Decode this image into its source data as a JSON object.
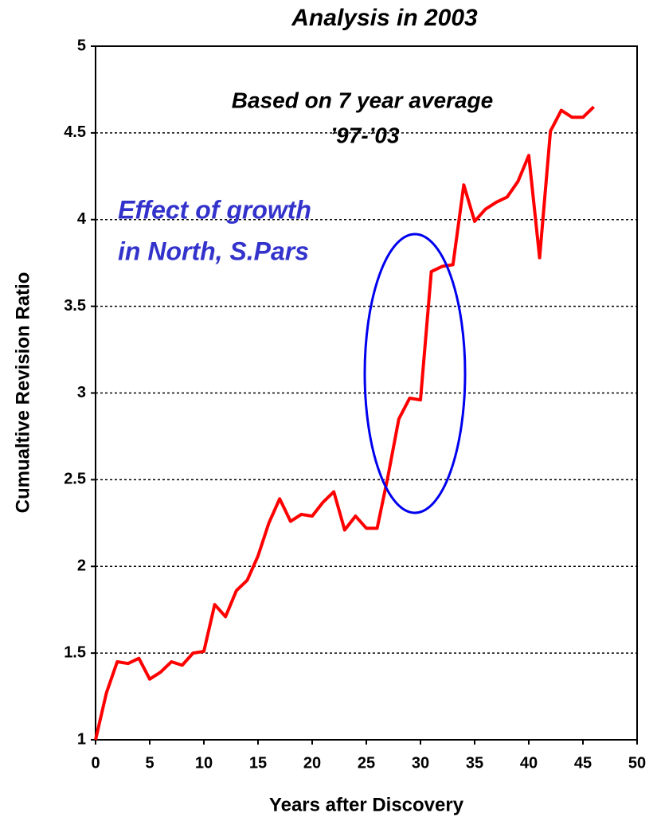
{
  "chart_data": {
    "type": "line",
    "title": "Analysis in 2003",
    "annotations": [
      "Based on 7 year average",
      "’97-’03",
      "Effect of growth",
      "in North, S.Pars"
    ],
    "xlabel": "Years after Discovery",
    "ylabel": "Cumualtive Revision Ratio",
    "x": [
      0,
      1,
      2,
      3,
      4,
      5,
      6,
      7,
      8,
      9,
      10,
      11,
      12,
      13,
      14,
      15,
      16,
      17,
      18,
      19,
      20,
      21,
      22,
      23,
      24,
      25,
      26,
      27,
      28,
      29,
      30,
      31,
      32,
      33,
      34,
      35,
      36,
      37,
      38,
      39,
      40,
      41,
      42,
      43,
      44,
      45,
      46
    ],
    "series": [
      {
        "name": "Cumulative revision ratio",
        "color": "#ff0000",
        "values": [
          1.0,
          1.27,
          1.45,
          1.44,
          1.47,
          1.35,
          1.39,
          1.45,
          1.43,
          1.5,
          1.51,
          1.78,
          1.71,
          1.86,
          1.92,
          2.06,
          2.25,
          2.39,
          2.26,
          2.3,
          2.29,
          2.37,
          2.43,
          2.21,
          2.29,
          2.22,
          2.22,
          2.52,
          2.85,
          2.97,
          2.96,
          3.7,
          3.73,
          3.74,
          4.2,
          3.99,
          4.06,
          4.1,
          4.13,
          4.22,
          4.37,
          3.78,
          4.51,
          4.63,
          4.59,
          4.59,
          4.65
        ]
      }
    ],
    "xlim": [
      0,
      50
    ],
    "xticks": [
      0,
      5,
      10,
      15,
      20,
      25,
      30,
      35,
      40,
      45,
      50
    ],
    "ylim": [
      1,
      5
    ],
    "yticks": [
      1,
      1.5,
      2,
      2.5,
      3,
      3.5,
      4,
      4.5,
      5
    ],
    "grid": true
  }
}
